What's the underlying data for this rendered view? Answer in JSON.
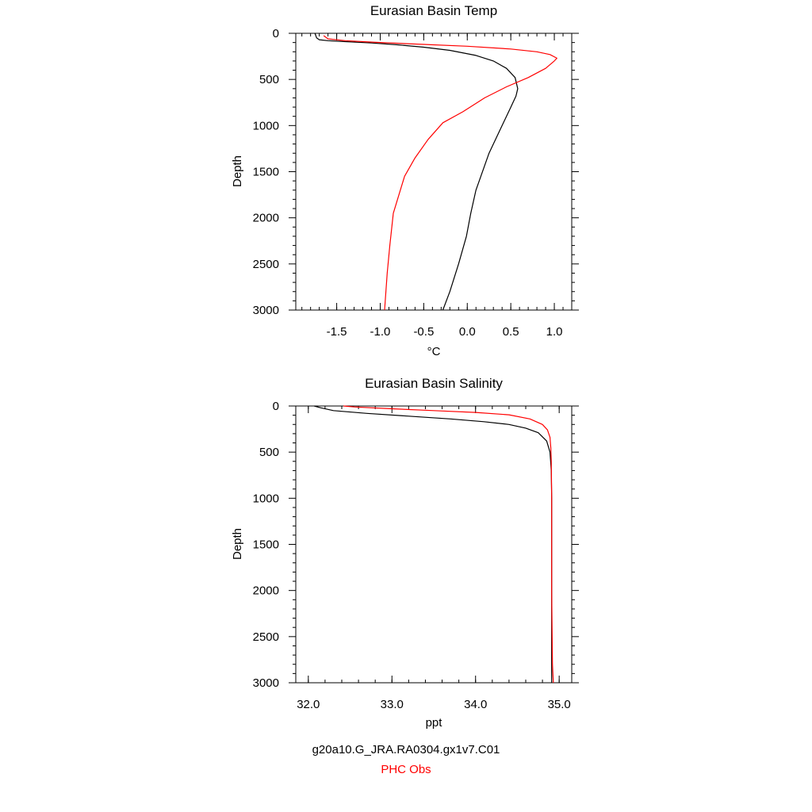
{
  "legend": {
    "model_label": "g20a10.G_JRA.RA0304.gx1v7.C01",
    "obs_label": "PHC Obs",
    "model_color": "#000000",
    "obs_color": "#ff0000"
  },
  "chart_data": [
    {
      "type": "line",
      "title": "Eurasian Basin Temp",
      "xlabel": "°C",
      "ylabel": "Depth",
      "xlim": [
        -1.97,
        1.2
      ],
      "ylim": [
        3000,
        0
      ],
      "y_inverted": true,
      "xticks": [
        -1.5,
        -1.0,
        -0.5,
        0.0,
        0.5,
        1.0
      ],
      "xtick_labels": [
        "-1.5",
        "-1.0",
        "-0.5",
        "0.0",
        "0.5",
        "1.0"
      ],
      "yticks": [
        0,
        500,
        1000,
        1500,
        2000,
        2500,
        3000
      ],
      "ytick_labels": [
        "0",
        "500",
        "1000",
        "1500",
        "2000",
        "2500",
        "3000"
      ],
      "grid": false,
      "series": [
        {
          "color": "#000000",
          "x": [
            -1.75,
            -1.73,
            -1.7,
            -1.6,
            -1.4,
            -1.1,
            -0.8,
            -0.5,
            -0.2,
            0.1,
            0.3,
            0.45,
            0.55,
            0.58,
            0.56,
            0.5,
            0.4,
            0.25,
            0.1,
            0.04,
            -0.01,
            -0.1,
            -0.2,
            -0.28
          ],
          "y": [
            0,
            50,
            70,
            80,
            90,
            105,
            125,
            150,
            185,
            240,
            300,
            380,
            480,
            600,
            680,
            800,
            1000,
            1300,
            1700,
            1950,
            2200,
            2500,
            2800,
            3000
          ]
        },
        {
          "color": "#ff0000",
          "x": [
            -1.65,
            -1.6,
            -1.4,
            -1.0,
            -0.5,
            0.0,
            0.5,
            0.8,
            0.95,
            1.03,
            1.0,
            0.9,
            0.7,
            0.45,
            0.2,
            -0.05,
            -0.28,
            -0.45,
            -0.6,
            -0.72,
            -0.85,
            -0.89,
            -0.92,
            -0.95
          ],
          "y": [
            25,
            60,
            80,
            100,
            120,
            140,
            170,
            200,
            230,
            270,
            300,
            380,
            480,
            580,
            700,
            850,
            970,
            1150,
            1350,
            1550,
            1950,
            2300,
            2600,
            3000
          ]
        }
      ]
    },
    {
      "type": "line",
      "title": "Eurasian Basin Salinity",
      "xlabel": "ppt",
      "ylabel": "Depth",
      "xlim": [
        31.85,
        35.15
      ],
      "ylim": [
        3000,
        0
      ],
      "y_inverted": true,
      "xticks": [
        32.0,
        33.0,
        34.0,
        35.0
      ],
      "xtick_labels": [
        "32.0",
        "33.0",
        "34.0",
        "35.0"
      ],
      "yticks": [
        0,
        500,
        1000,
        1500,
        2000,
        2500,
        3000
      ],
      "ytick_labels": [
        "0",
        "500",
        "1000",
        "1500",
        "2000",
        "2500",
        "3000"
      ],
      "grid": false,
      "series": [
        {
          "color": "#000000",
          "x": [
            32.07,
            32.15,
            32.3,
            32.7,
            33.2,
            33.7,
            34.1,
            34.4,
            34.6,
            34.75,
            34.85,
            34.89,
            34.905,
            34.91,
            34.91,
            34.91
          ],
          "y": [
            0,
            20,
            50,
            80,
            110,
            140,
            170,
            200,
            240,
            290,
            380,
            500,
            700,
            1000,
            2000,
            3000
          ]
        },
        {
          "color": "#ff0000",
          "x": [
            32.42,
            32.55,
            33.0,
            33.5,
            34.0,
            34.4,
            34.65,
            34.8,
            34.86,
            34.89,
            34.9,
            34.905,
            34.91,
            34.91,
            34.92,
            34.93
          ],
          "y": [
            0,
            10,
            30,
            50,
            70,
            95,
            140,
            200,
            260,
            340,
            450,
            600,
            1000,
            2000,
            2800,
            3000
          ]
        }
      ]
    }
  ]
}
